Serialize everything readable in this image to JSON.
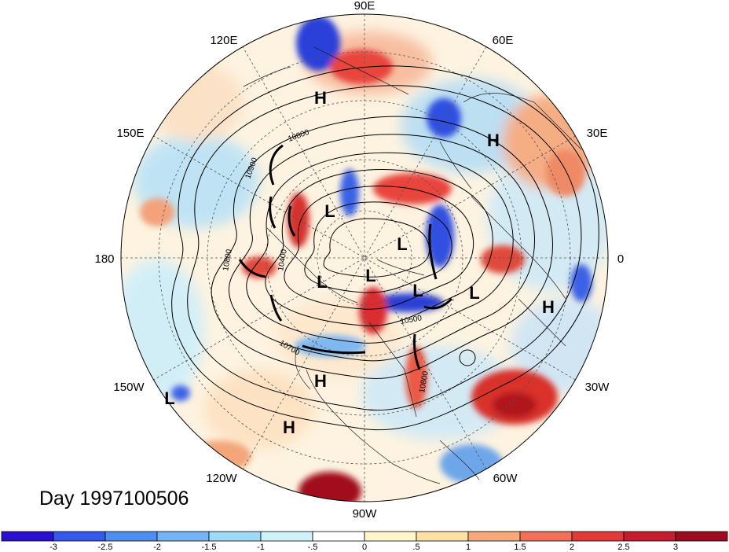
{
  "map": {
    "longitude_labels": [
      {
        "text": "90E"
      },
      {
        "text": "60E"
      },
      {
        "text": "30E"
      },
      {
        "text": "0"
      },
      {
        "text": "30W"
      },
      {
        "text": "60W"
      },
      {
        "text": "90W"
      },
      {
        "text": "120W"
      },
      {
        "text": "150W"
      },
      {
        "text": "180"
      },
      {
        "text": "150E"
      },
      {
        "text": "120E"
      }
    ],
    "centers": [
      {
        "type": "H"
      },
      {
        "type": "H"
      },
      {
        "type": "L"
      },
      {
        "type": "L"
      },
      {
        "type": "L"
      },
      {
        "type": "L"
      },
      {
        "type": "L"
      },
      {
        "type": "L"
      },
      {
        "type": "H"
      },
      {
        "type": "H"
      },
      {
        "type": "L"
      },
      {
        "type": "H"
      }
    ],
    "contour_labels": [
      "10800",
      "10900",
      "10400",
      "10800",
      "10700",
      "10500",
      "10800"
    ],
    "colors": {
      "dark_blue": "#1a10c8",
      "blue": "#3c7de8",
      "light_blue": "#8ec8f2",
      "pale_blue": "#cdeefa",
      "pale_yellow": "#fdf3c6",
      "orange": "#f4a67a",
      "red": "#e8453c",
      "dark_red": "#a10e1e"
    }
  },
  "title": {
    "day_label": "Day 1997100506"
  },
  "colorbar": {
    "tick_labels": [
      "-3",
      "-2.5",
      "-2",
      "-1.5",
      "-1",
      "-.5",
      "0",
      ".5",
      "1",
      "1.5",
      "2",
      "2.5",
      "3"
    ],
    "colors": [
      "#2a0fd0",
      "#3659ec",
      "#4d8ef0",
      "#74b4f6",
      "#9ed9f8",
      "#cdf2fb",
      "#ffffff",
      "#fff6cc",
      "#fde0a3",
      "#f7a97c",
      "#f2705a",
      "#e23a3a",
      "#c41e2e",
      "#9e0a20"
    ]
  }
}
